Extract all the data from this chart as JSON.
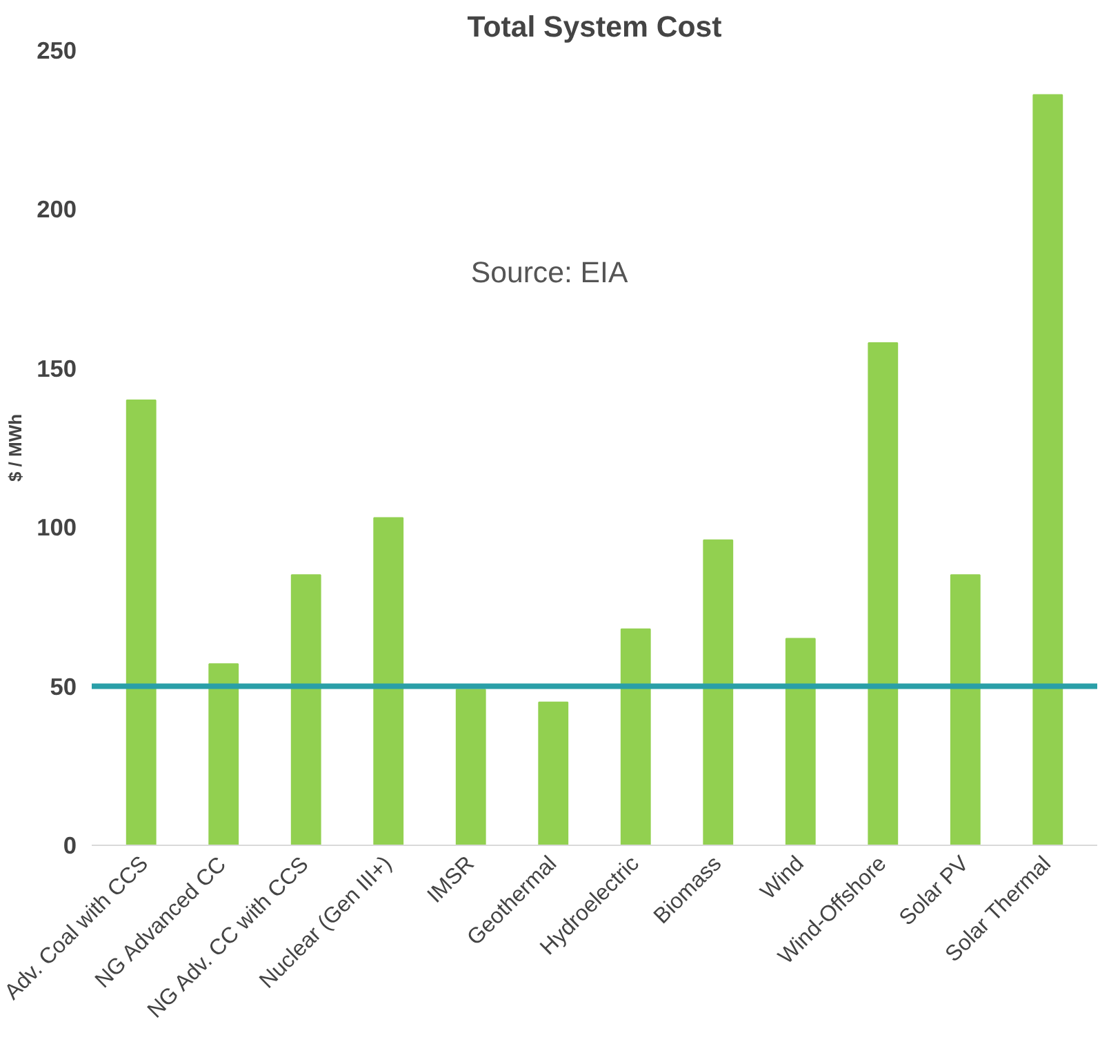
{
  "chart_data": {
    "type": "bar",
    "title": "Total System Cost",
    "ylabel": "$ / MWh",
    "categories": [
      "Adv. Coal with CCS",
      "NG Advanced CC",
      "NG Adv. CC with CCS",
      "Nuclear (Gen III+)",
      "IMSR",
      "Geothermal",
      "Hydroelectric",
      "Biomass",
      "Wind",
      "Wind-Offshore",
      "Solar PV",
      "Solar Thermal"
    ],
    "values": [
      140,
      57,
      85,
      103,
      49,
      45,
      68,
      96,
      65,
      158,
      85,
      236
    ],
    "color": "#92d050",
    "ylim": [
      0,
      250
    ],
    "yticks": [
      0,
      50,
      100,
      150,
      200,
      250
    ],
    "grid": false,
    "ref_lines": [
      {
        "axis": "y",
        "value": 50,
        "color": "#2a9fa8"
      }
    ],
    "annotations": [
      "Source:  EIA"
    ]
  }
}
